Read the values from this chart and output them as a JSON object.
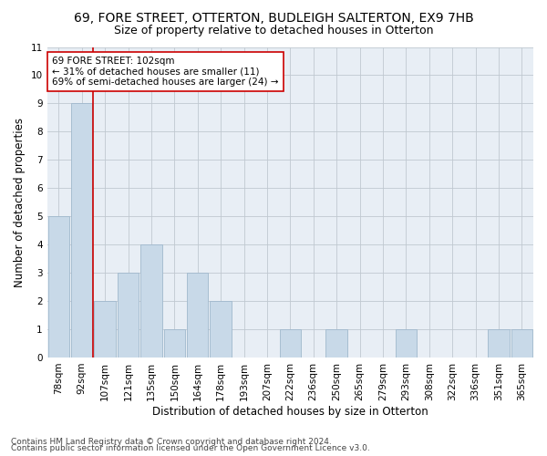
{
  "title1": "69, FORE STREET, OTTERTON, BUDLEIGH SALTERTON, EX9 7HB",
  "title2": "Size of property relative to detached houses in Otterton",
  "xlabel": "Distribution of detached houses by size in Otterton",
  "ylabel": "Number of detached properties",
  "categories": [
    "78sqm",
    "92sqm",
    "107sqm",
    "121sqm",
    "135sqm",
    "150sqm",
    "164sqm",
    "178sqm",
    "193sqm",
    "207sqm",
    "222sqm",
    "236sqm",
    "250sqm",
    "265sqm",
    "279sqm",
    "293sqm",
    "308sqm",
    "322sqm",
    "336sqm",
    "351sqm",
    "365sqm"
  ],
  "values": [
    5,
    9,
    2,
    3,
    4,
    1,
    3,
    2,
    0,
    0,
    1,
    0,
    1,
    0,
    0,
    1,
    0,
    0,
    0,
    1,
    1
  ],
  "bar_color": "#c8d9e8",
  "bar_edge_color": "#a0b8cc",
  "vline_x_index": 1.5,
  "vline_color": "#cc0000",
  "annotation_text": "69 FORE STREET: 102sqm\n← 31% of detached houses are smaller (11)\n69% of semi-detached houses are larger (24) →",
  "annotation_box_color": "#ffffff",
  "annotation_box_edge": "#cc0000",
  "ylim": [
    0,
    11
  ],
  "yticks": [
    0,
    1,
    2,
    3,
    4,
    5,
    6,
    7,
    8,
    9,
    10,
    11
  ],
  "footer1": "Contains HM Land Registry data © Crown copyright and database right 2024.",
  "footer2": "Contains public sector information licensed under the Open Government Licence v3.0.",
  "title1_fontsize": 10,
  "title2_fontsize": 9,
  "xlabel_fontsize": 8.5,
  "ylabel_fontsize": 8.5,
  "tick_fontsize": 7.5,
  "footer_fontsize": 6.5,
  "plot_bg_color": "#e8eef5",
  "fig_bg_color": "#ffffff",
  "grid_color": "#c0c8d0"
}
